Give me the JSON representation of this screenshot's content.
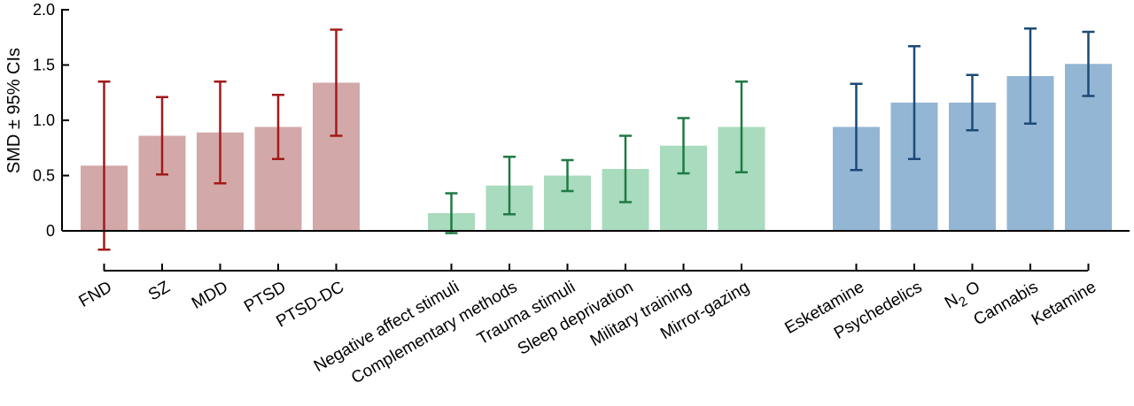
{
  "chart_data": {
    "type": "bar",
    "title": "",
    "xlabel": "",
    "ylabel": "SMD ± 95% CIs",
    "ylim": [
      0,
      2.0
    ],
    "yticks": [
      "0",
      "0.5",
      "1.0",
      "1.5",
      "2.0"
    ],
    "ytick_values": [
      0,
      0.5,
      1.0,
      1.5,
      2.0
    ],
    "grid": false,
    "groups": [
      {
        "bar_color": "#d3a8a8",
        "error_color": "#a31a1a",
        "categories": [
          "FND",
          "SZ",
          "MDD",
          "PTSD",
          "PTSD-DC"
        ],
        "values": [
          0.59,
          0.86,
          0.89,
          0.94,
          1.34
        ],
        "ci_low": [
          -0.17,
          0.51,
          0.43,
          0.65,
          0.86
        ],
        "ci_high": [
          1.35,
          1.21,
          1.35,
          1.23,
          1.82
        ]
      },
      {
        "bar_color": "#a9dbbe",
        "error_color": "#1f7a43",
        "categories": [
          "Negative affect stimuli",
          "Complementary methods",
          "Trauma stimuli",
          "Sleep deprivation",
          "Military training",
          "Mirror-gazing"
        ],
        "values": [
          0.16,
          0.41,
          0.5,
          0.56,
          0.77,
          0.94
        ],
        "ci_low": [
          -0.02,
          0.15,
          0.36,
          0.26,
          0.52,
          0.53
        ],
        "ci_high": [
          0.34,
          0.67,
          0.64,
          0.86,
          1.02,
          1.35
        ]
      },
      {
        "bar_color": "#93b6d4",
        "error_color": "#1b4a78",
        "categories": [
          "Esketamine",
          "Psychedelics",
          "N2O",
          "Cannabis",
          "Ketamine"
        ],
        "values": [
          0.94,
          1.16,
          1.16,
          1.4,
          1.51
        ],
        "ci_low": [
          0.55,
          0.65,
          0.91,
          0.97,
          1.22
        ],
        "ci_high": [
          1.33,
          1.67,
          1.41,
          1.83,
          1.8
        ]
      }
    ]
  }
}
